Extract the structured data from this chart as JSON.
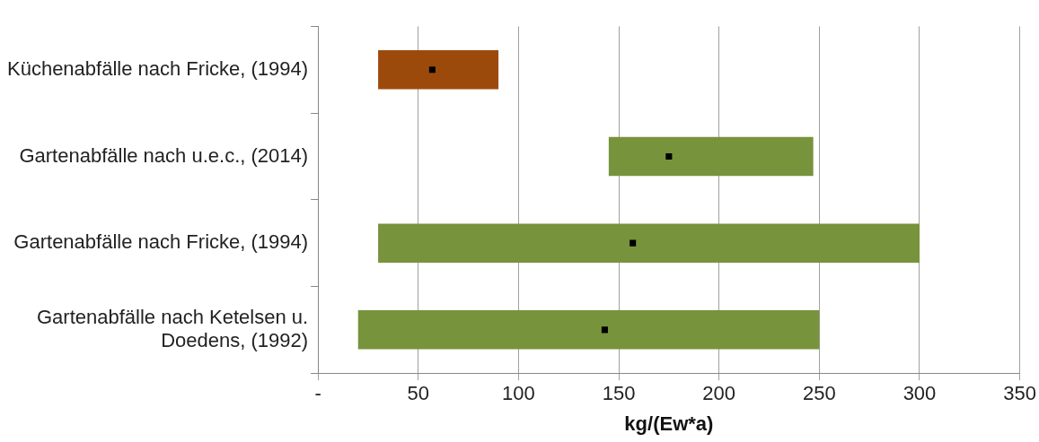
{
  "chart_data": {
    "type": "bar",
    "orientation": "horizontal",
    "xlabel": "kg/(Ew*a)",
    "categories": [
      "Küchenabfälle nach Fricke, (1994)",
      "Gartenabfälle nach u.e.c., (2014)",
      "Gartenabfälle nach Fricke, (1994)",
      "Gartenabfälle nach Ketelsen u.\nDoedens, (1992)"
    ],
    "series": [
      {
        "type": "bar",
        "colors": [
          "#9c4a0c",
          "#77933c",
          "#77933c",
          "#77933c"
        ],
        "base": [
          30,
          145,
          30,
          20
        ],
        "values": [
          60,
          102,
          270,
          230
        ]
      },
      {
        "type": "scatter",
        "color": "#000000",
        "values": [
          57,
          175,
          157,
          143
        ]
      }
    ],
    "xlim": [
      0,
      350
    ],
    "xticks": [
      {
        "value": 0,
        "label": "-"
      },
      50,
      100,
      150,
      200,
      250,
      300,
      350
    ],
    "grid": "x",
    "legend": false
  }
}
